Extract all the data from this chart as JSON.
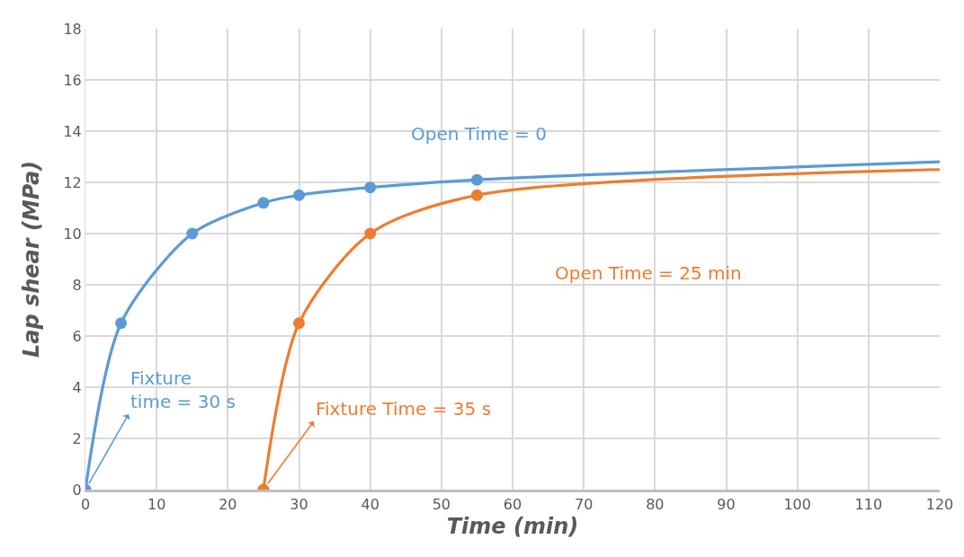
{
  "chart_data": {
    "type": "line",
    "xlabel": "Time (min)",
    "ylabel": "Lap shear (MPa)",
    "xlim": [
      0,
      120
    ],
    "xticks": [
      0,
      10,
      20,
      30,
      40,
      50,
      60,
      70,
      80,
      90,
      100,
      110,
      120
    ],
    "ylim": [
      0,
      18
    ],
    "yticks": [
      0,
      2,
      4,
      6,
      8,
      10,
      12,
      14,
      16,
      18
    ],
    "grid": true,
    "legend": false,
    "series": [
      {
        "name": "Open Time = 0",
        "color": "#5b9bd5",
        "marker": "none",
        "x": [
          0,
          5,
          15,
          25,
          30,
          40,
          55,
          120
        ],
        "values": [
          0,
          6.5,
          10,
          11.2,
          11.5,
          11.8,
          12.1,
          12.8
        ]
      },
      {
        "type": "scatter",
        "color": "#5b9bd5",
        "marker": "circle",
        "x": [
          0,
          5,
          15,
          25,
          30,
          40,
          55
        ],
        "values": [
          0,
          6.5,
          10,
          11.2,
          11.5,
          11.8,
          12.1
        ]
      },
      {
        "name": "Open Time = 25 min",
        "color": "#ed7d31",
        "marker": "none",
        "x": [
          25,
          30,
          40,
          55,
          120
        ],
        "values": [
          0,
          6.5,
          10,
          11.5,
          12.5
        ]
      },
      {
        "type": "scatter",
        "color": "#ed7d31",
        "marker": "circle",
        "x": [
          25,
          30,
          40,
          55
        ],
        "values": [
          0,
          6.5,
          10,
          11.5
        ]
      }
    ],
    "annotations": [
      {
        "text": "Fixture\ntime = 30 s",
        "x": 0,
        "y": 0
      },
      {
        "text": "Fixture Time = 35 s",
        "x": 25,
        "y": 0
      }
    ]
  }
}
